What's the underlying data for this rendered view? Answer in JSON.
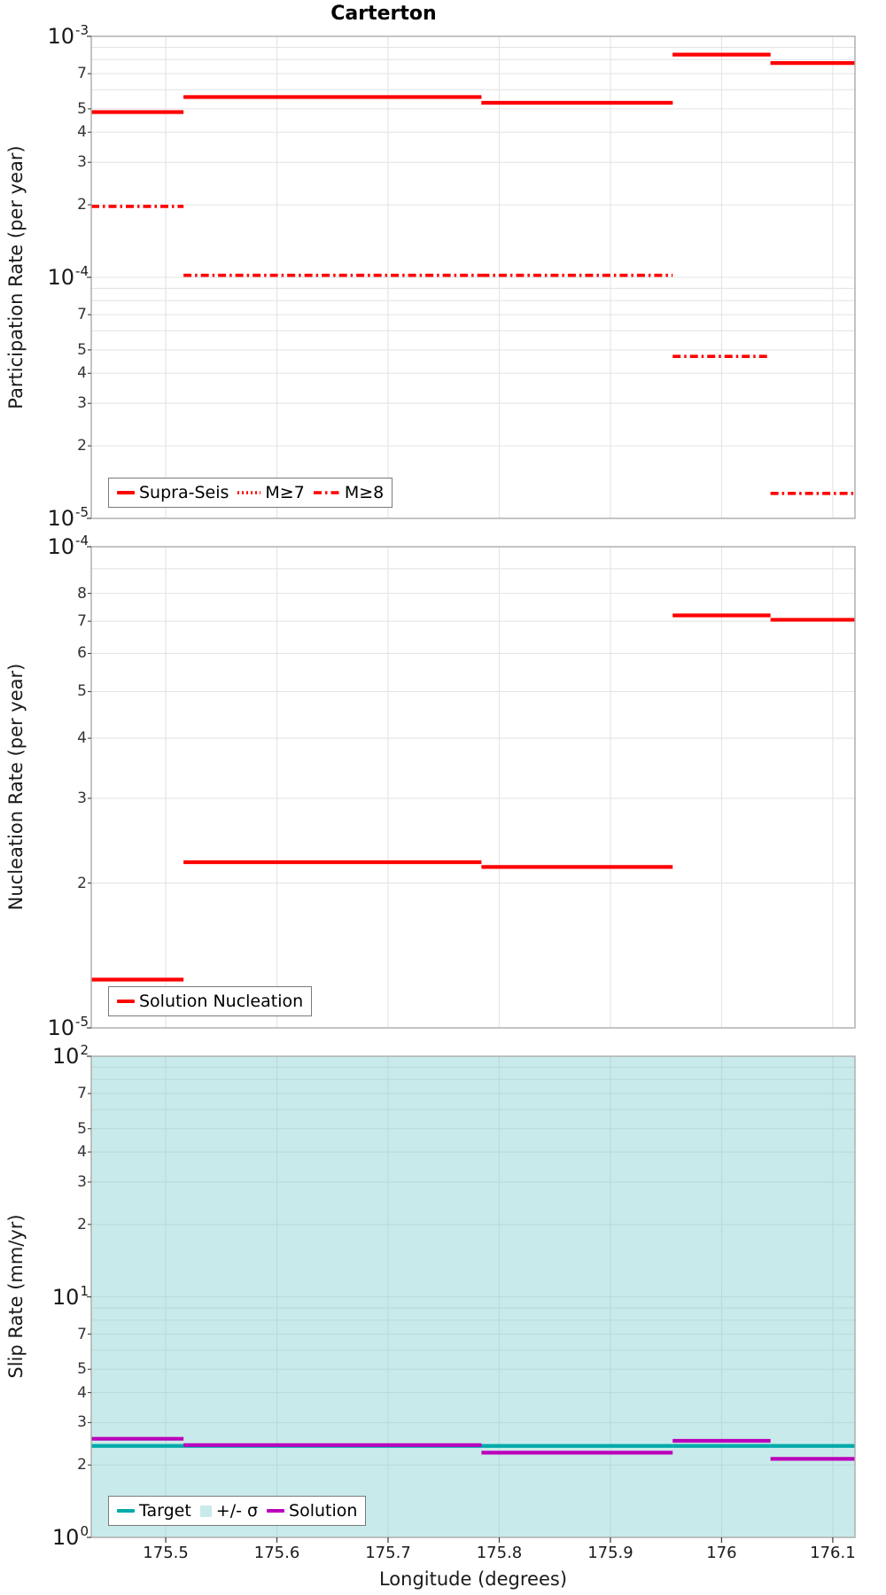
{
  "title": "Carterton",
  "colors": {
    "red": "#FF0000",
    "teal": "#00AAAA",
    "magenta": "#BB00BB",
    "band": "#C9EAEA",
    "grid": "#E4E4E4",
    "grid_on_band": "#BCDADA",
    "border": "#ABABAB",
    "tick": "#444444"
  },
  "xaxis": {
    "label": "Longitude (degrees)",
    "xlim": [
      175.433,
      176.12
    ],
    "ticks": [
      175.5,
      175.6,
      175.7,
      175.8,
      175.9,
      176.0,
      176.1
    ],
    "tick_labels": [
      "175.5",
      "175.6",
      "175.7",
      "175.8",
      "175.9",
      "176",
      "176.1"
    ]
  },
  "chart_data": [
    {
      "type": "line",
      "subtype": "step-segments",
      "panel": "participation",
      "ylabel": "Participation Rate (per year)",
      "ylim": [
        1e-05,
        0.001
      ],
      "x_edges": [
        175.433,
        175.516,
        175.784,
        175.956,
        176.044,
        176.12
      ],
      "series": [
        {
          "name": "Supra-Seis",
          "style": "solid",
          "color": "red",
          "values": [
            0.000485,
            0.00056,
            0.00053,
            0.00084,
            0.000775
          ]
        },
        {
          "name": "M≥7",
          "style": "dotted",
          "color": "red",
          "values": [
            0.000485,
            0.00056,
            0.00053,
            0.00084,
            0.000775
          ]
        },
        {
          "name": "M≥8",
          "style": "dashdot",
          "color": "red",
          "values": [
            0.000197,
            0.000102,
            0.000102,
            4.7e-05,
            1.27e-05
          ]
        }
      ],
      "yticks_major": [
        {
          "v": 0.001,
          "base": "10",
          "exp": "-3"
        },
        {
          "v": 0.0001,
          "base": "10",
          "exp": "-4"
        },
        {
          "v": 1e-05,
          "base": "10",
          "exp": "-5"
        }
      ],
      "yticks_minor": [
        {
          "v": 0.0007,
          "label": "7"
        },
        {
          "v": 0.0005,
          "label": "5"
        },
        {
          "v": 0.0004,
          "label": "4"
        },
        {
          "v": 0.0003,
          "label": "3"
        },
        {
          "v": 0.0002,
          "label": "2"
        },
        {
          "v": 7e-05,
          "label": "7"
        },
        {
          "v": 5e-05,
          "label": "5"
        },
        {
          "v": 4e-05,
          "label": "4"
        },
        {
          "v": 3e-05,
          "label": "3"
        },
        {
          "v": 2e-05,
          "label": "2"
        }
      ],
      "ygrid_unlabeled": [
        0.0009,
        0.0008,
        0.0006,
        9e-05,
        8e-05,
        6e-05
      ],
      "legend": [
        {
          "label": "Supra-Seis",
          "swatch": "solid",
          "color": "red"
        },
        {
          "label": "M≥7",
          "swatch": "dotted",
          "color": "red"
        },
        {
          "label": "M≥8",
          "swatch": "dashdot",
          "color": "red"
        }
      ]
    },
    {
      "type": "line",
      "subtype": "step-segments",
      "panel": "nucleation",
      "ylabel": "Nucleation Rate (per year)",
      "ylim": [
        1e-05,
        0.0001
      ],
      "x_edges": [
        175.433,
        175.516,
        175.784,
        175.956,
        176.044,
        176.12
      ],
      "series": [
        {
          "name": "Solution Nucleation",
          "style": "solid",
          "color": "red",
          "values": [
            1.26e-05,
            2.21e-05,
            2.16e-05,
            7.2e-05,
            7.05e-05
          ]
        }
      ],
      "yticks_major": [
        {
          "v": 0.0001,
          "base": "10",
          "exp": "-4"
        },
        {
          "v": 1e-05,
          "base": "10",
          "exp": "-5"
        }
      ],
      "yticks_minor": [
        {
          "v": 8e-05,
          "label": "8"
        },
        {
          "v": 7e-05,
          "label": "7"
        },
        {
          "v": 6e-05,
          "label": "6"
        },
        {
          "v": 5e-05,
          "label": "5"
        },
        {
          "v": 4e-05,
          "label": "4"
        },
        {
          "v": 3e-05,
          "label": "3"
        },
        {
          "v": 2e-05,
          "label": "2"
        }
      ],
      "ygrid_unlabeled": [
        9e-05
      ],
      "legend": [
        {
          "label": "Solution Nucleation",
          "swatch": "solid",
          "color": "red"
        }
      ]
    },
    {
      "type": "line",
      "subtype": "step-segments",
      "panel": "slip-rate",
      "ylabel": "Slip Rate (mm/yr)",
      "ylim": [
        1,
        100
      ],
      "x_edges": [
        175.433,
        175.516,
        175.784,
        175.956,
        176.044,
        176.12
      ],
      "series": [
        {
          "name": "+/- σ",
          "style": "band",
          "color": "band",
          "band": [
            1,
            100
          ]
        },
        {
          "name": "Target",
          "style": "solid",
          "color": "teal",
          "values": [
            2.4,
            2.4,
            2.4,
            2.4,
            2.4
          ]
        },
        {
          "name": "Solution",
          "style": "solid",
          "color": "magenta",
          "values": [
            2.57,
            2.42,
            2.25,
            2.52,
            2.12
          ]
        }
      ],
      "yticks_major": [
        {
          "v": 100,
          "base": "10",
          "exp": "2"
        },
        {
          "v": 10,
          "base": "10",
          "exp": "1"
        },
        {
          "v": 1,
          "base": "10",
          "exp": "0"
        }
      ],
      "yticks_minor": [
        {
          "v": 70,
          "label": "7"
        },
        {
          "v": 50,
          "label": "5"
        },
        {
          "v": 40,
          "label": "4"
        },
        {
          "v": 30,
          "label": "3"
        },
        {
          "v": 20,
          "label": "2"
        },
        {
          "v": 7,
          "label": "7"
        },
        {
          "v": 5,
          "label": "5"
        },
        {
          "v": 4,
          "label": "4"
        },
        {
          "v": 3,
          "label": "3"
        },
        {
          "v": 2,
          "label": "2"
        }
      ],
      "ygrid_unlabeled": [
        90,
        80,
        60,
        9,
        8,
        6
      ],
      "legend": [
        {
          "label": "Target",
          "swatch": "solid",
          "color": "teal"
        },
        {
          "label": "+/- σ",
          "swatch": "square",
          "color": "band"
        },
        {
          "label": "Solution",
          "swatch": "solid",
          "color": "magenta"
        }
      ]
    }
  ]
}
